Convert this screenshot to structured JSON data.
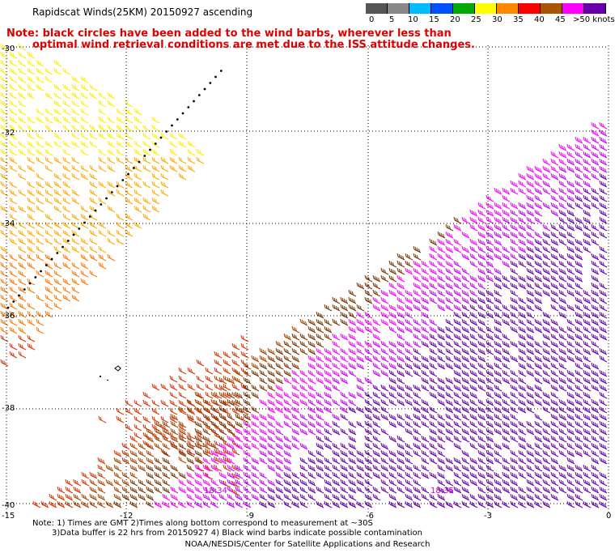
{
  "title": "Rapidscat Winds(25KM) 20150927 ascending",
  "note_red_line1": "Note: black circles have been added to the wind barbs, wherever less than",
  "note_red_line2": "optimal wind retrieval conditions are met due to the ISS attitude changes.",
  "legend": {
    "unit": ">50 knots",
    "labels": [
      "0",
      "5",
      "10",
      "15",
      "20",
      "25",
      "30",
      "35",
      "40",
      "45"
    ],
    "colors": [
      "#555555",
      "#888888",
      "#00bbff",
      "#0050ff",
      "#00aa00",
      "#ffff00",
      "#ff8800",
      "#ff0000",
      "#aa5500",
      "#ff00ff",
      "#6600aa"
    ]
  },
  "axes": {
    "lat_labels": [
      "-30",
      "-32",
      "-34",
      "-36",
      "-38",
      "-40"
    ],
    "lon_labels": [
      "-15",
      "-12",
      "-9",
      "-6",
      "-3",
      "0"
    ]
  },
  "time_labels": [
    "18:34",
    "18:35"
  ],
  "bottom_note_line1": "Note: 1) Times are GMT 2)Times along bottom correspond to measurement at ~30S",
  "bottom_note_line2": "3)Data buffer is 22 hrs from 20150927 4) Black wind barbs indicate possible contamination",
  "credit": "NOAA/NESDIS/Center for Satellite Applications and Research"
}
